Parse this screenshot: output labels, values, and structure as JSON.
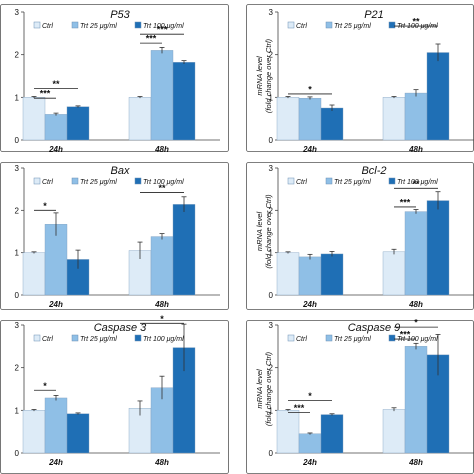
{
  "chart_data": [
    {
      "type": "bar",
      "title": "P53",
      "ylabel": "",
      "ylim": [
        0,
        3
      ],
      "yticks": [
        0,
        1,
        2,
        3
      ],
      "categories": [
        "24h",
        "48h"
      ],
      "legend": [
        "Ctrl",
        "Trt 25 μg/ml",
        "Trt 100 μg/ml"
      ],
      "colors": [
        "#ddebf7",
        "#8fbfe6",
        "#1f6fb5"
      ],
      "series": [
        {
          "values": [
            1.0,
            1.0
          ],
          "errors": [
            0.02,
            0.02
          ]
        },
        {
          "values": [
            0.6,
            2.1
          ],
          "errors": [
            0.03,
            0.07
          ]
        },
        {
          "values": [
            0.78,
            1.82
          ],
          "errors": [
            0.02,
            0.04
          ]
        }
      ],
      "annotations": [
        {
          "label": "***",
          "cat": 0,
          "from": 0,
          "to": 1,
          "y": 0.98
        },
        {
          "label": "**",
          "cat": 0,
          "from": 0,
          "to": 2,
          "y": 1.21
        },
        {
          "label": "***",
          "cat": 1,
          "from": 0,
          "to": 1,
          "y": 2.27
        },
        {
          "label": "***",
          "cat": 1,
          "from": 0,
          "to": 2,
          "y": 2.48
        }
      ]
    },
    {
      "type": "bar",
      "title": "P21",
      "ylabel": "mRNA level\n(fold change over Ctrl)",
      "ylim": [
        0,
        3
      ],
      "yticks": [
        0,
        1,
        2,
        3
      ],
      "categories": [
        "24h",
        "48h"
      ],
      "legend": [
        "Ctrl",
        "Trt 25 μg/ml",
        "Trt 100 μg/ml"
      ],
      "colors": [
        "#ddebf7",
        "#8fbfe6",
        "#1f6fb5"
      ],
      "series": [
        {
          "values": [
            1.0,
            1.0
          ],
          "errors": [
            0.02,
            0.02
          ]
        },
        {
          "values": [
            0.98,
            1.1
          ],
          "errors": [
            0.03,
            0.08
          ]
        },
        {
          "values": [
            0.75,
            2.05
          ],
          "errors": [
            0.07,
            0.2
          ]
        }
      ],
      "annotations": [
        {
          "label": "*",
          "cat": 0,
          "from": 0,
          "to": 2,
          "y": 1.08
        },
        {
          "label": "**",
          "cat": 1,
          "from": 0,
          "to": 2,
          "y": 2.67
        }
      ]
    },
    {
      "type": "bar",
      "title": "Bax",
      "ylabel": "",
      "ylim": [
        0,
        3
      ],
      "yticks": [
        0,
        1,
        2,
        3
      ],
      "categories": [
        "24h",
        "48h"
      ],
      "legend": [
        "Ctrl",
        "Trt 25 μg/ml",
        "Trt 100 μg/ml"
      ],
      "colors": [
        "#ddebf7",
        "#8fbfe6",
        "#1f6fb5"
      ],
      "series": [
        {
          "values": [
            1.0,
            1.05
          ],
          "errors": [
            0.02,
            0.2
          ]
        },
        {
          "values": [
            1.67,
            1.38
          ],
          "errors": [
            0.27,
            0.07
          ]
        },
        {
          "values": [
            0.84,
            2.14
          ],
          "errors": [
            0.22,
            0.18
          ]
        }
      ],
      "annotations": [
        {
          "label": "*",
          "cat": 0,
          "from": 0,
          "to": 1,
          "y": 2.0
        },
        {
          "label": "**",
          "cat": 1,
          "from": 0,
          "to": 2,
          "y": 2.42
        }
      ]
    },
    {
      "type": "bar",
      "title": "Bcl-2",
      "ylabel": "mRNA level\n(fold change over Ctrl)",
      "ylim": [
        0,
        3
      ],
      "yticks": [
        0,
        1,
        2,
        3
      ],
      "categories": [
        "24h",
        "48h"
      ],
      "legend": [
        "Ctrl",
        "Trt 25 μg/ml",
        "Trt 100 μg/ml"
      ],
      "colors": [
        "#ddebf7",
        "#8fbfe6",
        "#1f6fb5"
      ],
      "series": [
        {
          "values": [
            1.0,
            1.02
          ],
          "errors": [
            0.02,
            0.06
          ]
        },
        {
          "values": [
            0.9,
            1.97
          ],
          "errors": [
            0.06,
            0.05
          ]
        },
        {
          "values": [
            0.97,
            2.23
          ],
          "errors": [
            0.06,
            0.21
          ]
        }
      ],
      "annotations": [
        {
          "label": "***",
          "cat": 1,
          "from": 0,
          "to": 1,
          "y": 2.08
        },
        {
          "label": "**",
          "cat": 1,
          "from": 0,
          "to": 2,
          "y": 2.52
        }
      ]
    },
    {
      "type": "bar",
      "title": "Caspase 3",
      "ylabel": "",
      "ylim": [
        0,
        3
      ],
      "yticks": [
        0,
        1,
        2,
        3
      ],
      "categories": [
        "24h",
        "48h"
      ],
      "legend": [
        "Ctrl",
        "Trt 25 μg/ml",
        "Trt 100 μg/ml"
      ],
      "colors": [
        "#ddebf7",
        "#8fbfe6",
        "#1f6fb5"
      ],
      "series": [
        {
          "values": [
            1.0,
            1.05
          ],
          "errors": [
            0.02,
            0.17
          ]
        },
        {
          "values": [
            1.29,
            1.53
          ],
          "errors": [
            0.06,
            0.27
          ]
        },
        {
          "values": [
            0.92,
            2.47
          ],
          "errors": [
            0.02,
            0.55
          ]
        }
      ],
      "annotations": [
        {
          "label": "*",
          "cat": 0,
          "from": 0,
          "to": 1,
          "y": 1.47
        },
        {
          "label": "*",
          "cat": 1,
          "from": 0,
          "to": 2,
          "y": 3.04
        }
      ]
    },
    {
      "type": "bar",
      "title": "Caspase 9",
      "ylabel": "mRNA level\n(fold change over Ctrl)",
      "ylim": [
        0,
        3
      ],
      "yticks": [
        0,
        1,
        2,
        3
      ],
      "categories": [
        "24h",
        "48h"
      ],
      "legend": [
        "Ctrl",
        "Trt 25 μg/ml",
        "Trt 100 μg/ml"
      ],
      "colors": [
        "#ddebf7",
        "#8fbfe6",
        "#1f6fb5"
      ],
      "series": [
        {
          "values": [
            1.0,
            1.02
          ],
          "errors": [
            0.02,
            0.04
          ]
        },
        {
          "values": [
            0.45,
            2.5
          ],
          "errors": [
            0.02,
            0.07
          ]
        },
        {
          "values": [
            0.9,
            2.3
          ],
          "errors": [
            0.02,
            0.48
          ]
        }
      ],
      "annotations": [
        {
          "label": "***",
          "cat": 0,
          "from": 0,
          "to": 1,
          "y": 0.95
        },
        {
          "label": "*",
          "cat": 0,
          "from": 0,
          "to": 2,
          "y": 1.23
        },
        {
          "label": "***",
          "cat": 1,
          "from": 0,
          "to": 1,
          "y": 2.67
        },
        {
          "label": "*",
          "cat": 1,
          "from": 0,
          "to": 2,
          "y": 2.95
        }
      ]
    }
  ]
}
